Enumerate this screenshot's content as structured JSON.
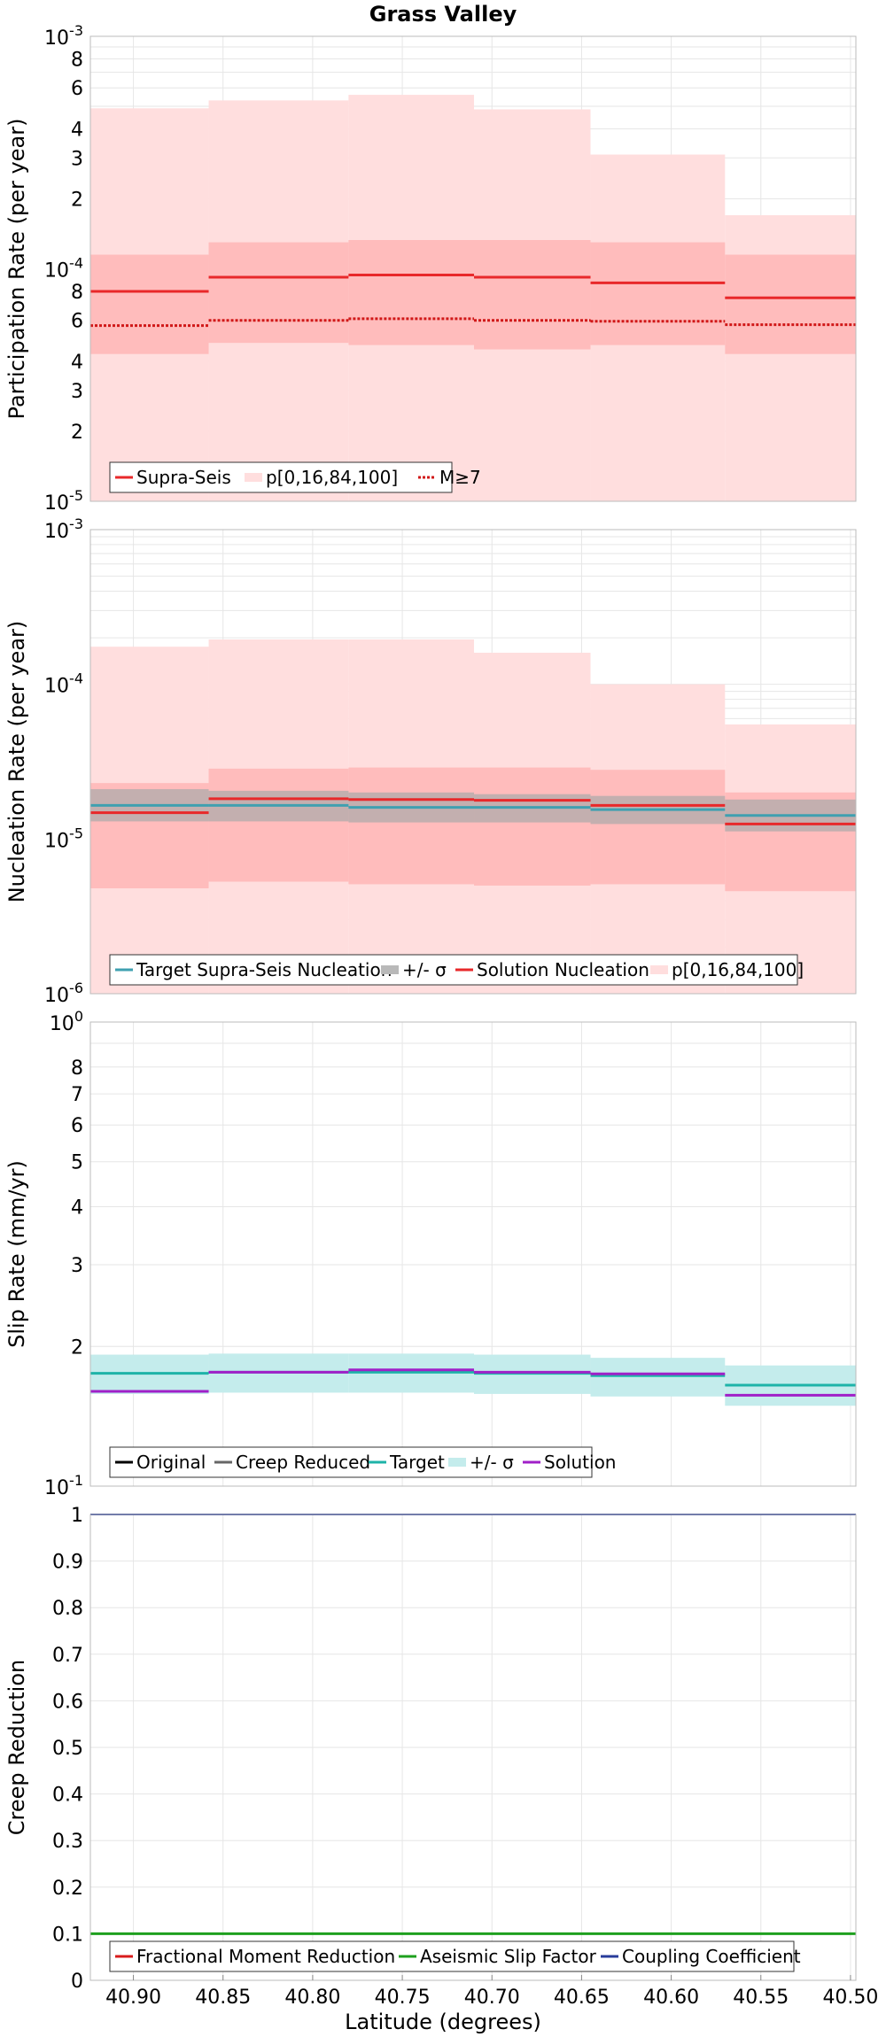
{
  "figure_title": "Grass Valley",
  "x_axis_label": "Latitude (degrees)",
  "x_ticks": [
    "40.90",
    "40.85",
    "40.80",
    "40.75",
    "40.70",
    "40.65",
    "40.60",
    "40.55",
    "40.50"
  ],
  "colors": {
    "supra_seis": "#e8282a",
    "band_outer": "#ffdede",
    "band_inner": "#ffbcbc",
    "target_nuc": "#3fa0b0",
    "sigma_gray": "#b9b9b9",
    "slip_target": "#1eb3a8",
    "slip_sigma": "#c4ecec",
    "solution_purple": "#a020c8",
    "creep_green": "#1ea01e",
    "coupling_blue": "#283c9a",
    "frac_red": "#d81c1c",
    "original_black": "#000000",
    "creep_reduced_gray": "#666666"
  },
  "chart_data": [
    {
      "type": "line",
      "subtype": "step",
      "title": "Grass Valley",
      "xlabel": "Latitude (degrees)",
      "ylabel": "Participation Rate (per year)",
      "yscale": "log",
      "ylim": [
        1e-05,
        0.001
      ],
      "xlim": [
        40.924,
        40.497
      ],
      "y_ticks": [
        "10-3",
        "8",
        "6",
        "4",
        "3",
        "2",
        "10-4",
        "8",
        "6",
        "4",
        "3",
        "2",
        "10-5"
      ],
      "x_edges": [
        40.924,
        40.858,
        40.78,
        40.71,
        40.645,
        40.57,
        40.497
      ],
      "series": [
        {
          "name": "Supra-Seis",
          "values": [
            8e-05,
            9.2e-05,
            9.4e-05,
            9.2e-05,
            8.7e-05,
            7.5e-05
          ]
        },
        {
          "name": "p[0,16,84,100]",
          "p0": [
            1e-05,
            1e-05,
            1e-05,
            1e-05,
            1e-05,
            1e-05
          ],
          "p16": [
            4.3e-05,
            4.8e-05,
            4.7e-05,
            4.5e-05,
            4.7e-05,
            4.3e-05
          ],
          "p84": [
            0.000115,
            0.00013,
            0.000133,
            0.000133,
            0.00013,
            0.000115
          ],
          "p100": [
            0.00049,
            0.00053,
            0.00056,
            0.000485,
            0.00031,
            0.00017
          ]
        },
        {
          "name": "M≥7",
          "values": [
            5.7e-05,
            6e-05,
            6.1e-05,
            6e-05,
            5.95e-05,
            5.75e-05
          ]
        }
      ],
      "legend": [
        "Supra-Seis",
        "p[0,16,84,100]",
        "M≥7"
      ],
      "legend_position": "bottom-left",
      "grid": true
    },
    {
      "type": "line",
      "subtype": "step",
      "ylabel": "Nucleation Rate (per year)",
      "yscale": "log",
      "ylim": [
        1e-06,
        0.001
      ],
      "xlim": [
        40.924,
        40.497
      ],
      "y_ticks": [
        "10-3",
        "10-4",
        "10-5",
        "10-6"
      ],
      "x_edges": [
        40.924,
        40.858,
        40.78,
        40.71,
        40.645,
        40.57,
        40.497
      ],
      "series": [
        {
          "name": "Target Supra-Seis Nucleation",
          "values": [
            1.65e-05,
            1.65e-05,
            1.6e-05,
            1.6e-05,
            1.55e-05,
            1.42e-05
          ]
        },
        {
          "name": "+/- σ",
          "low": [
            1.3e-05,
            1.3e-05,
            1.28e-05,
            1.28e-05,
            1.25e-05,
            1.12e-05
          ],
          "high": [
            2.1e-05,
            2.05e-05,
            2e-05,
            1.95e-05,
            1.9e-05,
            1.8e-05
          ]
        },
        {
          "name": "Solution Nucleation",
          "values": [
            1.48e-05,
            1.82e-05,
            1.8e-05,
            1.78e-05,
            1.65e-05,
            1.25e-05
          ]
        },
        {
          "name": "p[0,16,84,100]",
          "p0": [
            1e-06,
            1e-06,
            1e-06,
            1e-06,
            1e-06,
            1e-06
          ],
          "p16": [
            4.8e-06,
            5.3e-06,
            5.1e-06,
            5e-06,
            5.1e-06,
            4.6e-06
          ],
          "p84": [
            2.3e-05,
            2.85e-05,
            2.9e-05,
            2.9e-05,
            2.8e-05,
            2e-05
          ],
          "p100": [
            0.000175,
            0.000195,
            0.000195,
            0.00016,
            0.0001,
            5.5e-05
          ]
        }
      ],
      "legend": [
        "Target Supra-Seis Nucleation",
        "+/- σ",
        "Solution Nucleation",
        "p[0,16,84,100]"
      ],
      "legend_position": "bottom-left",
      "grid": true
    },
    {
      "type": "line",
      "subtype": "step",
      "ylabel": "Slip Rate (mm/yr)",
      "yscale": "log",
      "ylim": [
        1,
        10
      ],
      "xlim": [
        40.924,
        40.497
      ],
      "y_ticks": [
        "100",
        "8",
        "7",
        "6",
        "5",
        "4",
        "3",
        "2",
        "10-1"
      ],
      "x_edges": [
        40.924,
        40.858,
        40.78,
        40.71,
        40.645,
        40.57,
        40.497
      ],
      "series": [
        {
          "name": "Original",
          "values": []
        },
        {
          "name": "Creep Reduced",
          "values": []
        },
        {
          "name": "Target",
          "values": [
            1.75,
            1.76,
            1.76,
            1.75,
            1.73,
            1.65
          ]
        },
        {
          "name": "+/- σ",
          "low": [
            1.58,
            1.59,
            1.59,
            1.58,
            1.56,
            1.49
          ],
          "high": [
            1.92,
            1.93,
            1.93,
            1.92,
            1.89,
            1.82
          ]
        },
        {
          "name": "Solution",
          "values": [
            1.6,
            1.76,
            1.78,
            1.76,
            1.745,
            1.57
          ]
        }
      ],
      "legend": [
        "Original",
        "Creep Reduced",
        "Target",
        "+/- σ",
        "Solution"
      ],
      "legend_position": "bottom-left",
      "grid": true
    },
    {
      "type": "line",
      "ylabel": "Creep Reduction",
      "xlabel": "Latitude (degrees)",
      "yscale": "linear",
      "ylim": [
        0,
        1
      ],
      "xlim": [
        40.924,
        40.497
      ],
      "y_ticks": [
        "1",
        "0.9",
        "0.8",
        "0.7",
        "0.6",
        "0.5",
        "0.4",
        "0.3",
        "0.2",
        "0.1",
        "0"
      ],
      "series": [
        {
          "name": "Fractional Moment Reduction",
          "values": []
        },
        {
          "name": "Aseismic Slip Factor",
          "values": [
            0.1
          ]
        },
        {
          "name": "Coupling Coefficient",
          "values": [
            1.0
          ]
        }
      ],
      "legend": [
        "Fractional Moment Reduction",
        "Aseismic Slip Factor",
        "Coupling Coefficient"
      ],
      "legend_position": "bottom-left",
      "grid": true
    }
  ]
}
